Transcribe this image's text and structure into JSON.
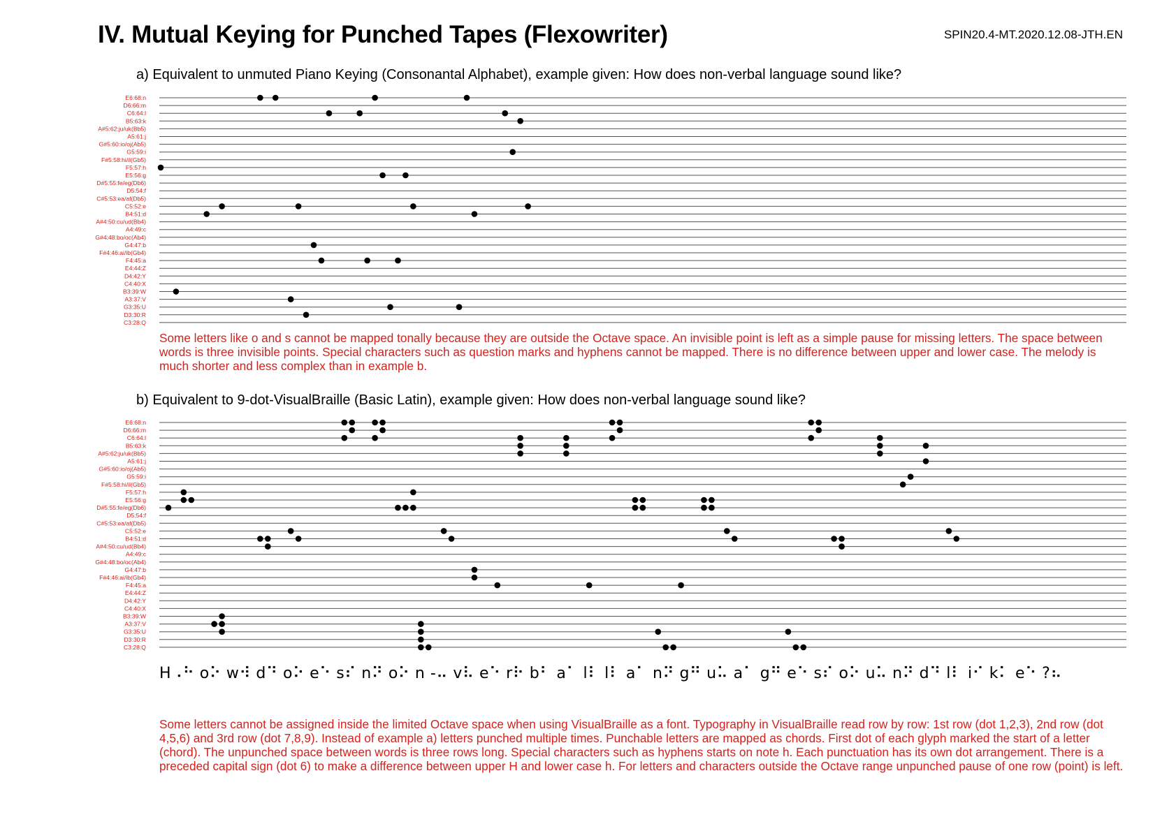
{
  "header": {
    "title": "IV. Mutual Keying for Punched Tapes (Flexowriter)",
    "doc_id": "SPIN20.4-MT.2020.12.08-JTH.EN"
  },
  "colors": {
    "label": "#d2231e",
    "line": "#555555",
    "dot": "#000000"
  },
  "staff_labels": [
    "E6:68:n",
    "D6:66:m",
    "C6:64:l",
    "B5:63:k",
    "A#5:62:ju/uk(Bb5)",
    "A5:61:j",
    "G#5:60:io/oj(Ab5)",
    "G5:59:i",
    "F#5:58:hi/il(Gb5)",
    "F5:57:h",
    "E5:56:g",
    "D#5:55:fe/eg(Db6)",
    "D5:54:f",
    "C#5:53:ea/af(Db5)",
    "C5:52:e",
    "B4:51:d",
    "A#4:50:cu/ud(Bb4)",
    "A4:49:c",
    "G#4:48:bo/oc(Ab4)",
    "G4:47:b",
    "F#4:46:ai/ib(Gb4)",
    "F4:45:a",
    "E4:44:Z",
    "D4:42:Y",
    "C4:40:X",
    "B3:39:W",
    "A3:37:V",
    "G3:35:U",
    "D3:30:R",
    "C3:28:Q"
  ],
  "section_a": {
    "heading": "a) Equivalent to unmuted Piano Keying (Consonantal Alphabet), example given: How does non-verbal language sound like?",
    "note": "Some letters like o and s cannot be mapped tonally because they are outside the Octave space. An invisible point is left as a simple pause for missing letters. The space between words is three invisible points. Special characters such as question marks and hyphens cannot be mapped. There is no difference between upper and lower case. The melody is much shorter and less complex than in example b.",
    "events": [
      {
        "step": 0,
        "notes": [
          "F5:57:h"
        ]
      },
      {
        "step": 2,
        "notes": [
          "B3:39:W"
        ]
      },
      {
        "step": 6,
        "notes": [
          "B4:51:d"
        ]
      },
      {
        "step": 8,
        "notes": [
          "C5:52:e"
        ]
      },
      {
        "step": 13,
        "notes": [
          "E6:68:n"
        ]
      },
      {
        "step": 15,
        "notes": [
          "E6:68:n"
        ]
      },
      {
        "step": 17,
        "notes": [
          "A3:37:V"
        ]
      },
      {
        "step": 18,
        "notes": [
          "C5:52:e"
        ]
      },
      {
        "step": 19,
        "notes": [
          "D3:30:R"
        ]
      },
      {
        "step": 20,
        "notes": [
          "G4:47:b"
        ]
      },
      {
        "step": 21,
        "notes": [
          "F4:45:a"
        ]
      },
      {
        "step": 22,
        "notes": [
          "C6:64:l"
        ]
      },
      {
        "step": 26,
        "notes": [
          "C6:64:l"
        ]
      },
      {
        "step": 27,
        "notes": [
          "F4:45:a"
        ]
      },
      {
        "step": 28,
        "notes": [
          "E6:68:n"
        ]
      },
      {
        "step": 29,
        "notes": [
          "E5:56:g"
        ]
      },
      {
        "step": 30,
        "notes": [
          "G3:35:U"
        ]
      },
      {
        "step": 31,
        "notes": [
          "F4:45:a"
        ]
      },
      {
        "step": 32,
        "notes": [
          "E5:56:g"
        ]
      },
      {
        "step": 33,
        "notes": [
          "C5:52:e"
        ]
      },
      {
        "step": 39,
        "notes": [
          "G3:35:U"
        ]
      },
      {
        "step": 40,
        "notes": [
          "E6:68:n"
        ]
      },
      {
        "step": 41,
        "notes": [
          "B4:51:d"
        ]
      },
      {
        "step": 45,
        "notes": [
          "C6:64:l"
        ]
      },
      {
        "step": 46,
        "notes": [
          "G5:59:i"
        ]
      },
      {
        "step": 47,
        "notes": [
          "B5:63:k"
        ]
      },
      {
        "step": 48,
        "notes": [
          "C5:52:e"
        ]
      }
    ]
  },
  "section_b": {
    "heading": "b) Equivalent to 9-dot-VisualBraille (Basic Latin), example given: How does non-verbal language sound like?",
    "braille_text": "H⠠⠓ o⠕ w⠺  d⠙ o⠕ e⠑ s⠎  n⠝ o⠕ n -⠤ v⠧ e⠑ r⠗ b⠃ a⠁ l⠇  l⠇ a⠁ n⠝ g⠛ u⠥ a⠁ g⠛ e⠑  s⠎ o⠕ u⠥ n⠝ d⠙  l⠇ i⠊ k⠅ e⠑ ?⠦",
    "note": "Some letters cannot be assigned inside the limited Octave space when using VisualBraille as a font. Typography in VisualBraille read row by row: 1st row (dot 1,2,3), 2nd row (dot 4,5,6) and 3rd row (dot 7,8,9). Instead of example a) letters punched multiple times. Punchable letters are mapped as chords. First dot of each glyph marked the start of a letter (chord). The unpunched space between words is three rows long. Special characters such as hyphens starts on note h. Each punctuation has its own dot arrangement. There is a preceded capital sign (dot 6) to make a difference between upper H and lower case h. For letters and characters outside the Octave range unpunched pause of one row (point) is left.",
    "events": [
      {
        "step": 1,
        "notes": [
          "D#5:55:fe/eg(Db6)"
        ]
      },
      {
        "step": 3,
        "notes": [
          "F5:57:h",
          "E5:56:g"
        ]
      },
      {
        "step": 4,
        "notes": [
          "E5:56:g"
        ]
      },
      {
        "step": 7,
        "notes": [
          "A3:37:V"
        ]
      },
      {
        "step": 8,
        "notes": [
          "B3:39:W",
          "A3:37:V",
          "G3:35:U"
        ]
      },
      {
        "step": 13,
        "notes": [
          "B4:51:d"
        ]
      },
      {
        "step": 14,
        "notes": [
          "B4:51:d",
          "A#4:50:cu/ud(Bb4)"
        ]
      },
      {
        "step": 17,
        "notes": [
          "C5:52:e"
        ]
      },
      {
        "step": 18,
        "notes": [
          "B4:51:d"
        ]
      },
      {
        "step": 24,
        "notes": [
          "E6:68:n",
          "C6:64:l"
        ]
      },
      {
        "step": 25,
        "notes": [
          "E6:68:n",
          "D6:66:m"
        ]
      },
      {
        "step": 28,
        "notes": [
          "E6:68:n",
          "C6:64:l"
        ]
      },
      {
        "step": 29,
        "notes": [
          "E6:68:n",
          "D6:66:m"
        ]
      },
      {
        "step": 31,
        "notes": [
          "D#5:55:fe/eg(Db6)"
        ]
      },
      {
        "step": 32,
        "notes": [
          "D#5:55:fe/eg(Db6)"
        ]
      },
      {
        "step": 33,
        "notes": [
          "F5:57:h",
          "D#5:55:fe/eg(Db6)"
        ]
      },
      {
        "step": 34,
        "notes": [
          "G3:35:U",
          "D3:30:R",
          "C3:28:Q",
          "A3:37:V"
        ]
      },
      {
        "step": 35,
        "notes": [
          "C3:28:Q"
        ]
      },
      {
        "step": 37,
        "notes": [
          "C5:52:e"
        ]
      },
      {
        "step": 38,
        "notes": [
          "B4:51:d"
        ]
      },
      {
        "step": 41,
        "notes": [
          "G4:47:b",
          "F#4:46:ai/ib(Gb4)"
        ]
      },
      {
        "step": 44,
        "notes": [
          "F4:45:a"
        ]
      },
      {
        "step": 47,
        "notes": [
          "C6:64:l",
          "B5:63:k",
          "A#5:62:ju/uk(Bb5)"
        ]
      },
      {
        "step": 53,
        "notes": [
          "C6:64:l",
          "B5:63:k",
          "A#5:62:ju/uk(Bb5)"
        ]
      },
      {
        "step": 56,
        "notes": [
          "F4:45:a"
        ]
      },
      {
        "step": 59,
        "notes": [
          "E6:68:n",
          "C6:64:l"
        ]
      },
      {
        "step": 60,
        "notes": [
          "E6:68:n",
          "D6:66:m"
        ]
      },
      {
        "step": 62,
        "notes": [
          "E5:56:g",
          "D#5:55:fe/eg(Db6)"
        ]
      },
      {
        "step": 63,
        "notes": [
          "E5:56:g",
          "D#5:55:fe/eg(Db6)"
        ]
      },
      {
        "step": 65,
        "notes": [
          "G3:35:U"
        ]
      },
      {
        "step": 66,
        "notes": [
          "C3:28:Q"
        ]
      },
      {
        "step": 67,
        "notes": [
          "C3:28:Q"
        ]
      },
      {
        "step": 68,
        "notes": [
          "F4:45:a"
        ]
      },
      {
        "step": 71,
        "notes": [
          "E5:56:g",
          "D#5:55:fe/eg(Db6)"
        ]
      },
      {
        "step": 72,
        "notes": [
          "E5:56:g",
          "D#5:55:fe/eg(Db6)"
        ]
      },
      {
        "step": 74,
        "notes": [
          "C5:52:e"
        ]
      },
      {
        "step": 75,
        "notes": [
          "B4:51:d"
        ]
      },
      {
        "step": 82,
        "notes": [
          "G3:35:U"
        ]
      },
      {
        "step": 83,
        "notes": [
          "C3:28:Q"
        ]
      },
      {
        "step": 84,
        "notes": [
          "C3:28:Q"
        ]
      },
      {
        "step": 85,
        "notes": [
          "E6:68:n",
          "C6:64:l"
        ]
      },
      {
        "step": 86,
        "notes": [
          "E6:68:n",
          "D6:66:m"
        ]
      },
      {
        "step": 88,
        "notes": [
          "B4:51:d"
        ]
      },
      {
        "step": 89,
        "notes": [
          "B4:51:d",
          "A#4:50:cu/ud(Bb4)"
        ]
      },
      {
        "step": 94,
        "notes": [
          "C6:64:l",
          "B5:63:k",
          "A#5:62:ju/uk(Bb5)"
        ]
      },
      {
        "step": 97,
        "notes": [
          "F#5:58:hi/il(Gb5)"
        ]
      },
      {
        "step": 98,
        "notes": [
          "G5:59:i"
        ]
      },
      {
        "step": 100,
        "notes": [
          "B5:63:k",
          "A5:61:j"
        ]
      },
      {
        "step": 103,
        "notes": [
          "C5:52:e"
        ]
      },
      {
        "step": 104,
        "notes": [
          "B4:51:d"
        ]
      }
    ]
  }
}
